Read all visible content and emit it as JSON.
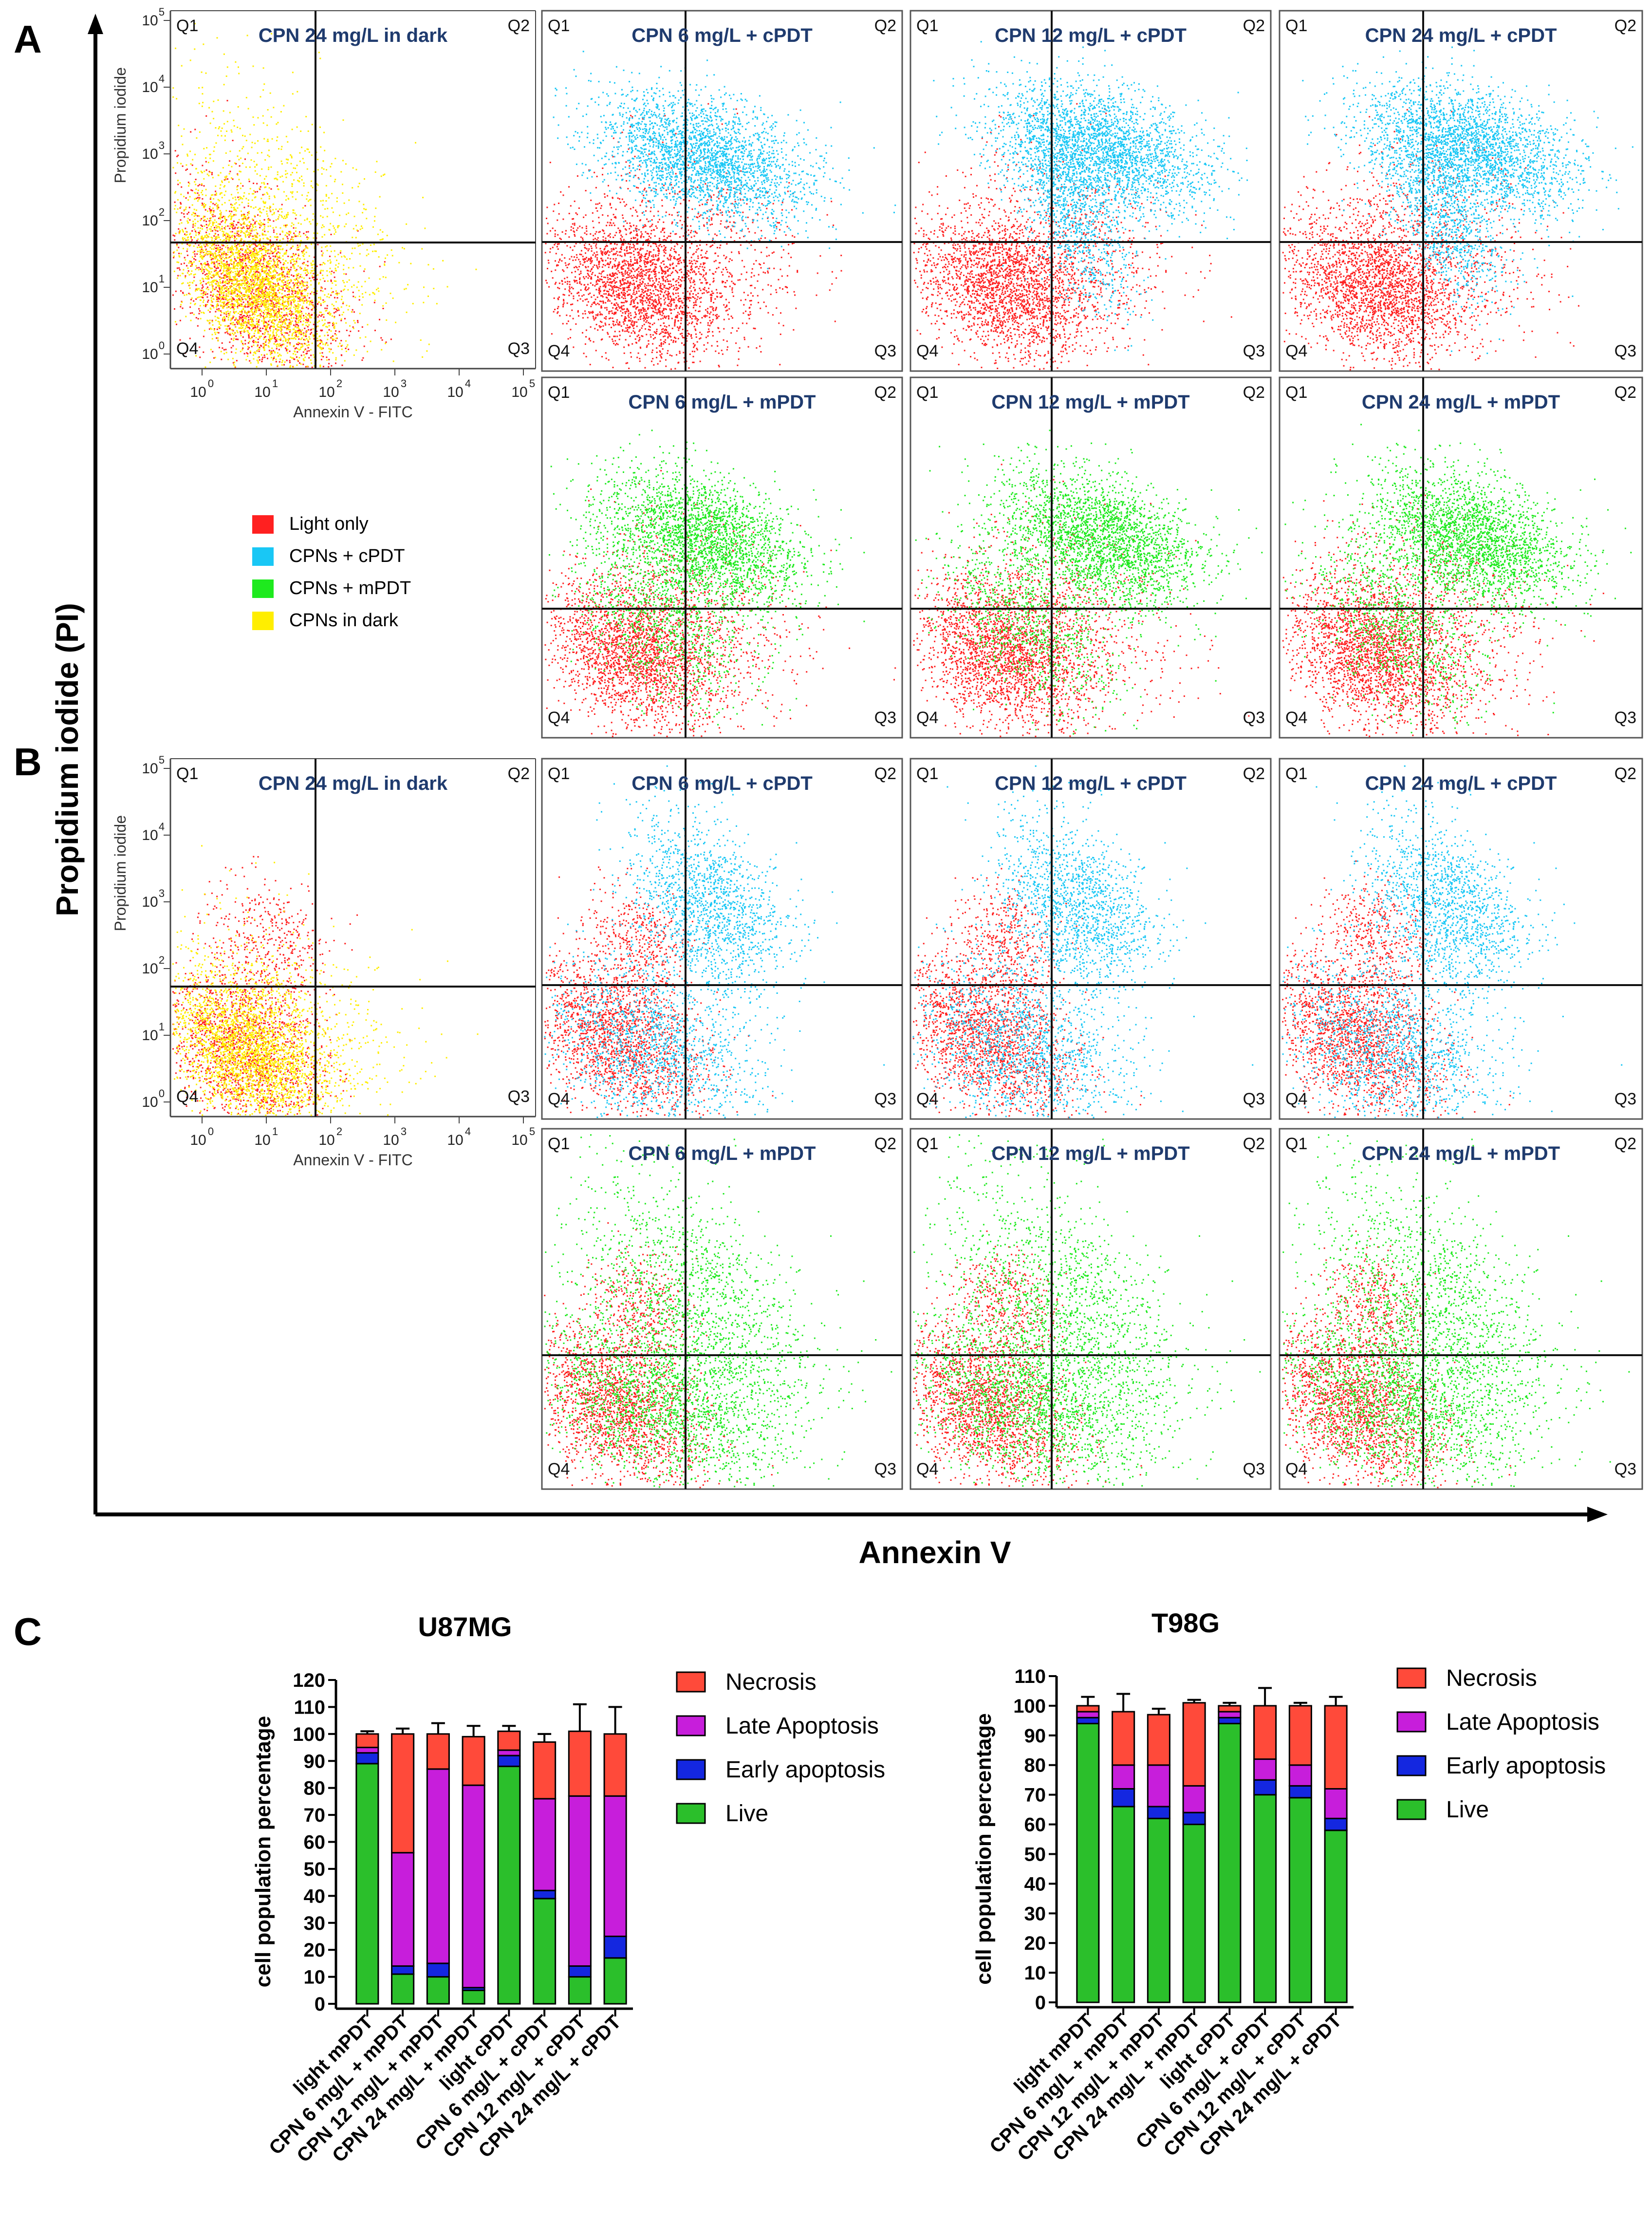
{
  "panel_letters": {
    "a": "A",
    "b": "B",
    "c": "C"
  },
  "axis_titles": {
    "y": "Propidium iodide (PI)",
    "x": "Annexin V"
  },
  "scatter_axes": {
    "ylabel": "Propidium iodide",
    "xlabel": "Annexin V - FITC",
    "tick_base": "10",
    "tick_exps": [
      "0",
      "1",
      "2",
      "3",
      "4",
      "5"
    ]
  },
  "quadrants": {
    "q1": "Q1",
    "q2": "Q2",
    "q3": "Q3",
    "q4": "Q4"
  },
  "colors": {
    "light_only": "#ff2020",
    "cpdt": "#19c7f5",
    "mpdt": "#1eea1e",
    "dark": "#ffee00",
    "title": "#1f3b6e",
    "necrosis": "#ff4a3a",
    "late": "#c71edb",
    "early": "#1427e0",
    "live": "#2bbf2b"
  },
  "legend_scatter": [
    {
      "label": "Light only",
      "color": "#ff2020"
    },
    {
      "label": "CPNs + cPDT",
      "color": "#19c7f5"
    },
    {
      "label": "CPNs + mPDT",
      "color": "#1eea1e"
    },
    {
      "label": "CPNs in dark",
      "color": "#ffee00"
    }
  ],
  "scatter_plots": [
    {
      "panel": "A",
      "title": "CPN 24 mg/L in dark",
      "type": "dark",
      "axes": true
    },
    {
      "panel": "A",
      "title": "CPN 6 mg/L + cPDT",
      "type": "cpdt",
      "dose": 6
    },
    {
      "panel": "A",
      "title": "CPN 12 mg/L + cPDT",
      "type": "cpdt",
      "dose": 12
    },
    {
      "panel": "A",
      "title": "CPN 24 mg/L + cPDT",
      "type": "cpdt",
      "dose": 24
    },
    {
      "panel": "A",
      "title": "CPN 6 mg/L + mPDT",
      "type": "mpdt",
      "dose": 6
    },
    {
      "panel": "A",
      "title": "CPN 12 mg/L + mPDT",
      "type": "mpdt",
      "dose": 12
    },
    {
      "panel": "A",
      "title": "CPN 24 mg/L + mPDT",
      "type": "mpdt",
      "dose": 24
    },
    {
      "panel": "B",
      "title": "CPN 24 mg/L in dark",
      "type": "dark",
      "axes": true
    },
    {
      "panel": "B",
      "title": "CPN 6 mg/L + cPDT",
      "type": "cpdt",
      "dose": 6
    },
    {
      "panel": "B",
      "title": "CPN 12 mg/L + cPDT",
      "type": "cpdt",
      "dose": 12
    },
    {
      "panel": "B",
      "title": "CPN 24 mg/L + cPDT",
      "type": "cpdt",
      "dose": 24
    },
    {
      "panel": "B",
      "title": "CPN 6 mg/L + mPDT",
      "type": "mpdt",
      "dose": 6
    },
    {
      "panel": "B",
      "title": "CPN 12 mg/L + mPDT",
      "type": "mpdt",
      "dose": 12
    },
    {
      "panel": "B",
      "title": "CPN 24 mg/L + mPDT",
      "type": "mpdt",
      "dose": 24
    }
  ],
  "chart_data": [
    {
      "type": "bar",
      "stacked": true,
      "title": "U87MG",
      "ylabel": "cell population percentage",
      "ylim": [
        0,
        120
      ],
      "yticks": [
        "0",
        "10",
        "20",
        "30",
        "40",
        "50",
        "60",
        "70",
        "80",
        "90",
        "100",
        "110",
        "120"
      ],
      "categories": [
        "light mPDT",
        "CPN 6 mg/L + mPDT",
        "CPN 12 mg/L + mPDT",
        "CPN 24 mg/L + mPDT",
        "light cPDT",
        "CPN 6 mg/L + cPDT",
        "CPN 12 mg/L + cPDT",
        "CPN 24 mg/L + cPDT"
      ],
      "series": [
        {
          "name": "Live",
          "values": [
            89,
            11,
            10,
            5,
            88,
            39,
            10,
            17
          ]
        },
        {
          "name": "Early apoptosis",
          "values": [
            4,
            3,
            5,
            1,
            4,
            3,
            4,
            8
          ]
        },
        {
          "name": "Late Apoptosis",
          "values": [
            2,
            42,
            72,
            75,
            2,
            34,
            63,
            52
          ]
        },
        {
          "name": "Necrosis",
          "values": [
            5,
            44,
            13,
            18,
            7,
            21,
            24,
            23
          ]
        }
      ],
      "legend": [
        "Necrosis",
        "Late Apoptosis",
        "Early apoptosis",
        "Live"
      ],
      "totals": [
        100,
        100,
        100,
        99,
        101,
        97,
        101,
        100
      ],
      "errors": [
        1,
        2,
        4,
        4,
        2,
        3,
        10,
        10
      ]
    },
    {
      "type": "bar",
      "stacked": true,
      "title": "T98G",
      "ylabel": "cell population percentage",
      "ylim": [
        0,
        110
      ],
      "yticks": [
        "0",
        "10",
        "20",
        "30",
        "40",
        "50",
        "60",
        "70",
        "80",
        "90",
        "100",
        "110"
      ],
      "categories": [
        "light mPDT",
        "CPN 6 mg/L + mPDT",
        "CPN 12 mg/L + mPDT",
        "CPN 24 mg/L + mPDT",
        "light cPDT",
        "CPN 6 mg/L + cPDT",
        "CPN 12 mg/L + cPDT",
        "CPN 24 mg/L + cPDT"
      ],
      "series": [
        {
          "name": "Live",
          "values": [
            94,
            66,
            62,
            60,
            94,
            70,
            69,
            58
          ]
        },
        {
          "name": "Early apoptosis",
          "values": [
            2,
            6,
            4,
            4,
            2,
            5,
            4,
            4
          ]
        },
        {
          "name": "Late Apoptosis",
          "values": [
            2,
            8,
            14,
            9,
            2,
            7,
            7,
            10
          ]
        },
        {
          "name": "Necrosis",
          "values": [
            2,
            18,
            17,
            28,
            2,
            18,
            20,
            28
          ]
        }
      ],
      "legend": [
        "Necrosis",
        "Late Apoptosis",
        "Early apoptosis",
        "Live"
      ],
      "totals": [
        100,
        98,
        97,
        101,
        100,
        100,
        100,
        100
      ],
      "errors": [
        3,
        6,
        2,
        1,
        1,
        6,
        1,
        3
      ]
    }
  ]
}
